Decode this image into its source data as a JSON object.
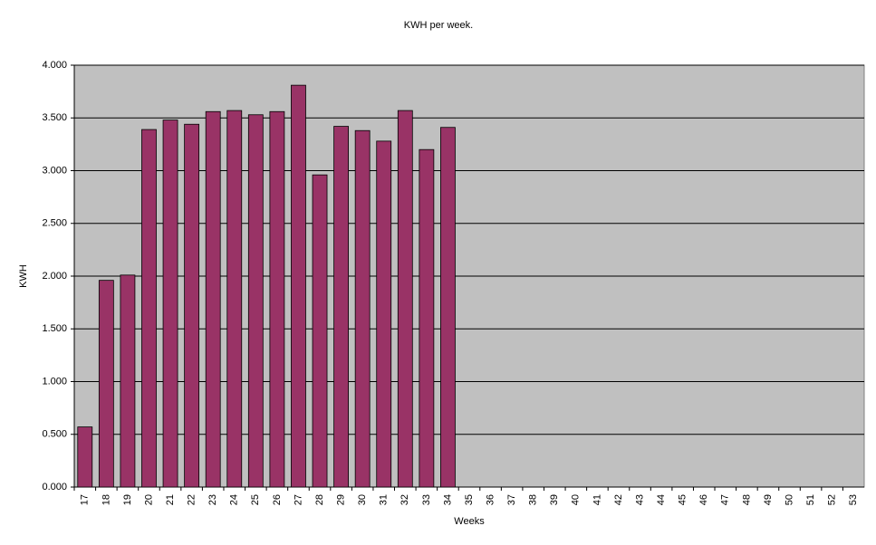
{
  "chart_data": {
    "type": "bar",
    "title": "KWH per week.",
    "x_label": "Weeks",
    "y_label": "KWH",
    "categories": [
      "17",
      "18",
      "19",
      "20",
      "21",
      "22",
      "23",
      "24",
      "25",
      "26",
      "27",
      "28",
      "29",
      "30",
      "31",
      "32",
      "33",
      "34",
      "35",
      "36",
      "37",
      "38",
      "39",
      "40",
      "41",
      "42",
      "43",
      "44",
      "45",
      "46",
      "47",
      "48",
      "49",
      "50",
      "51",
      "52",
      "53"
    ],
    "values": [
      570,
      1960,
      2010,
      3390,
      3480,
      3440,
      3560,
      3570,
      3530,
      3560,
      3810,
      2960,
      3420,
      3380,
      3280,
      3570,
      3200,
      3410,
      null,
      null,
      null,
      null,
      null,
      null,
      null,
      null,
      null,
      null,
      null,
      null,
      null,
      null,
      null,
      null,
      null,
      null,
      null
    ],
    "color": "#993366",
    "ylim": [
      0,
      4000
    ],
    "yticks": [
      {
        "value": 0,
        "label": "0.000"
      },
      {
        "value": 500,
        "label": "0.500"
      },
      {
        "value": 1000,
        "label": "1.000"
      },
      {
        "value": 1500,
        "label": "1.500"
      },
      {
        "value": 2000,
        "label": "2.000"
      },
      {
        "value": 2500,
        "label": "2.500"
      },
      {
        "value": 3000,
        "label": "3.000"
      },
      {
        "value": 3500,
        "label": "3.500"
      },
      {
        "value": 4000,
        "label": "4.000"
      }
    ],
    "grid": true
  }
}
